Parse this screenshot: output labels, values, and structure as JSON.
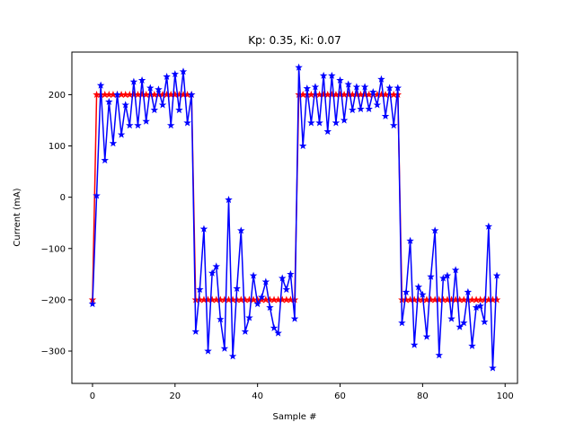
{
  "chart_data": {
    "type": "line",
    "title": "Kp: 0.35, Ki: 0.07",
    "xlabel": "Sample #",
    "ylabel": "Current (mA)",
    "xlim": [
      -5,
      103
    ],
    "ylim": [
      -363,
      283
    ],
    "xticks": [
      0,
      20,
      40,
      60,
      80,
      100
    ],
    "yticks": [
      -300,
      -200,
      -100,
      0,
      100,
      200
    ],
    "grid": false,
    "marker": "star",
    "series": [
      {
        "color": "#ff0000",
        "values": [
          -200,
          200,
          200,
          200,
          200,
          200,
          200,
          200,
          200,
          200,
          200,
          200,
          200,
          200,
          200,
          200,
          200,
          200,
          200,
          200,
          200,
          200,
          200,
          200,
          200,
          -200,
          -200,
          -200,
          -200,
          -200,
          -200,
          -200,
          -200,
          -200,
          -200,
          -200,
          -200,
          -200,
          -200,
          -200,
          -200,
          -200,
          -200,
          -200,
          -200,
          -200,
          -200,
          -200,
          -200,
          -200,
          200,
          200,
          200,
          200,
          200,
          200,
          200,
          200,
          200,
          200,
          200,
          200,
          200,
          200,
          200,
          200,
          200,
          200,
          200,
          200,
          200,
          200,
          200,
          200,
          200,
          -200,
          -200,
          -200,
          -200,
          -200,
          -200,
          -200,
          -200,
          -200,
          -200,
          -200,
          -200,
          -200,
          -200,
          -200,
          -200,
          -200,
          -200,
          -200,
          -200,
          -200,
          -200,
          -200,
          -200
        ]
      },
      {
        "color": "#0000ff",
        "values": [
          -208,
          3,
          218,
          72,
          186,
          105,
          200,
          122,
          180,
          140,
          225,
          140,
          228,
          148,
          213,
          170,
          210,
          180,
          235,
          140,
          240,
          170,
          245,
          145,
          200,
          -262,
          -180,
          -62,
          -300,
          -148,
          -135,
          -238,
          -295,
          -5,
          -310,
          -178,
          -65,
          -262,
          -235,
          -153,
          -208,
          -195,
          -165,
          -215,
          -255,
          -265,
          -158,
          -180,
          -150,
          -237,
          253,
          100,
          212,
          145,
          215,
          145,
          237,
          128,
          237,
          145,
          228,
          150,
          220,
          170,
          215,
          172,
          215,
          172,
          205,
          180,
          230,
          158,
          213,
          140,
          213,
          -245,
          -185,
          -85,
          -288,
          -175,
          -190,
          -272,
          -155,
          -65,
          -308,
          -158,
          -153,
          -237,
          -142,
          -253,
          -245,
          -185,
          -290,
          -215,
          -212,
          -243,
          -57,
          -333,
          -153
        ]
      }
    ]
  }
}
